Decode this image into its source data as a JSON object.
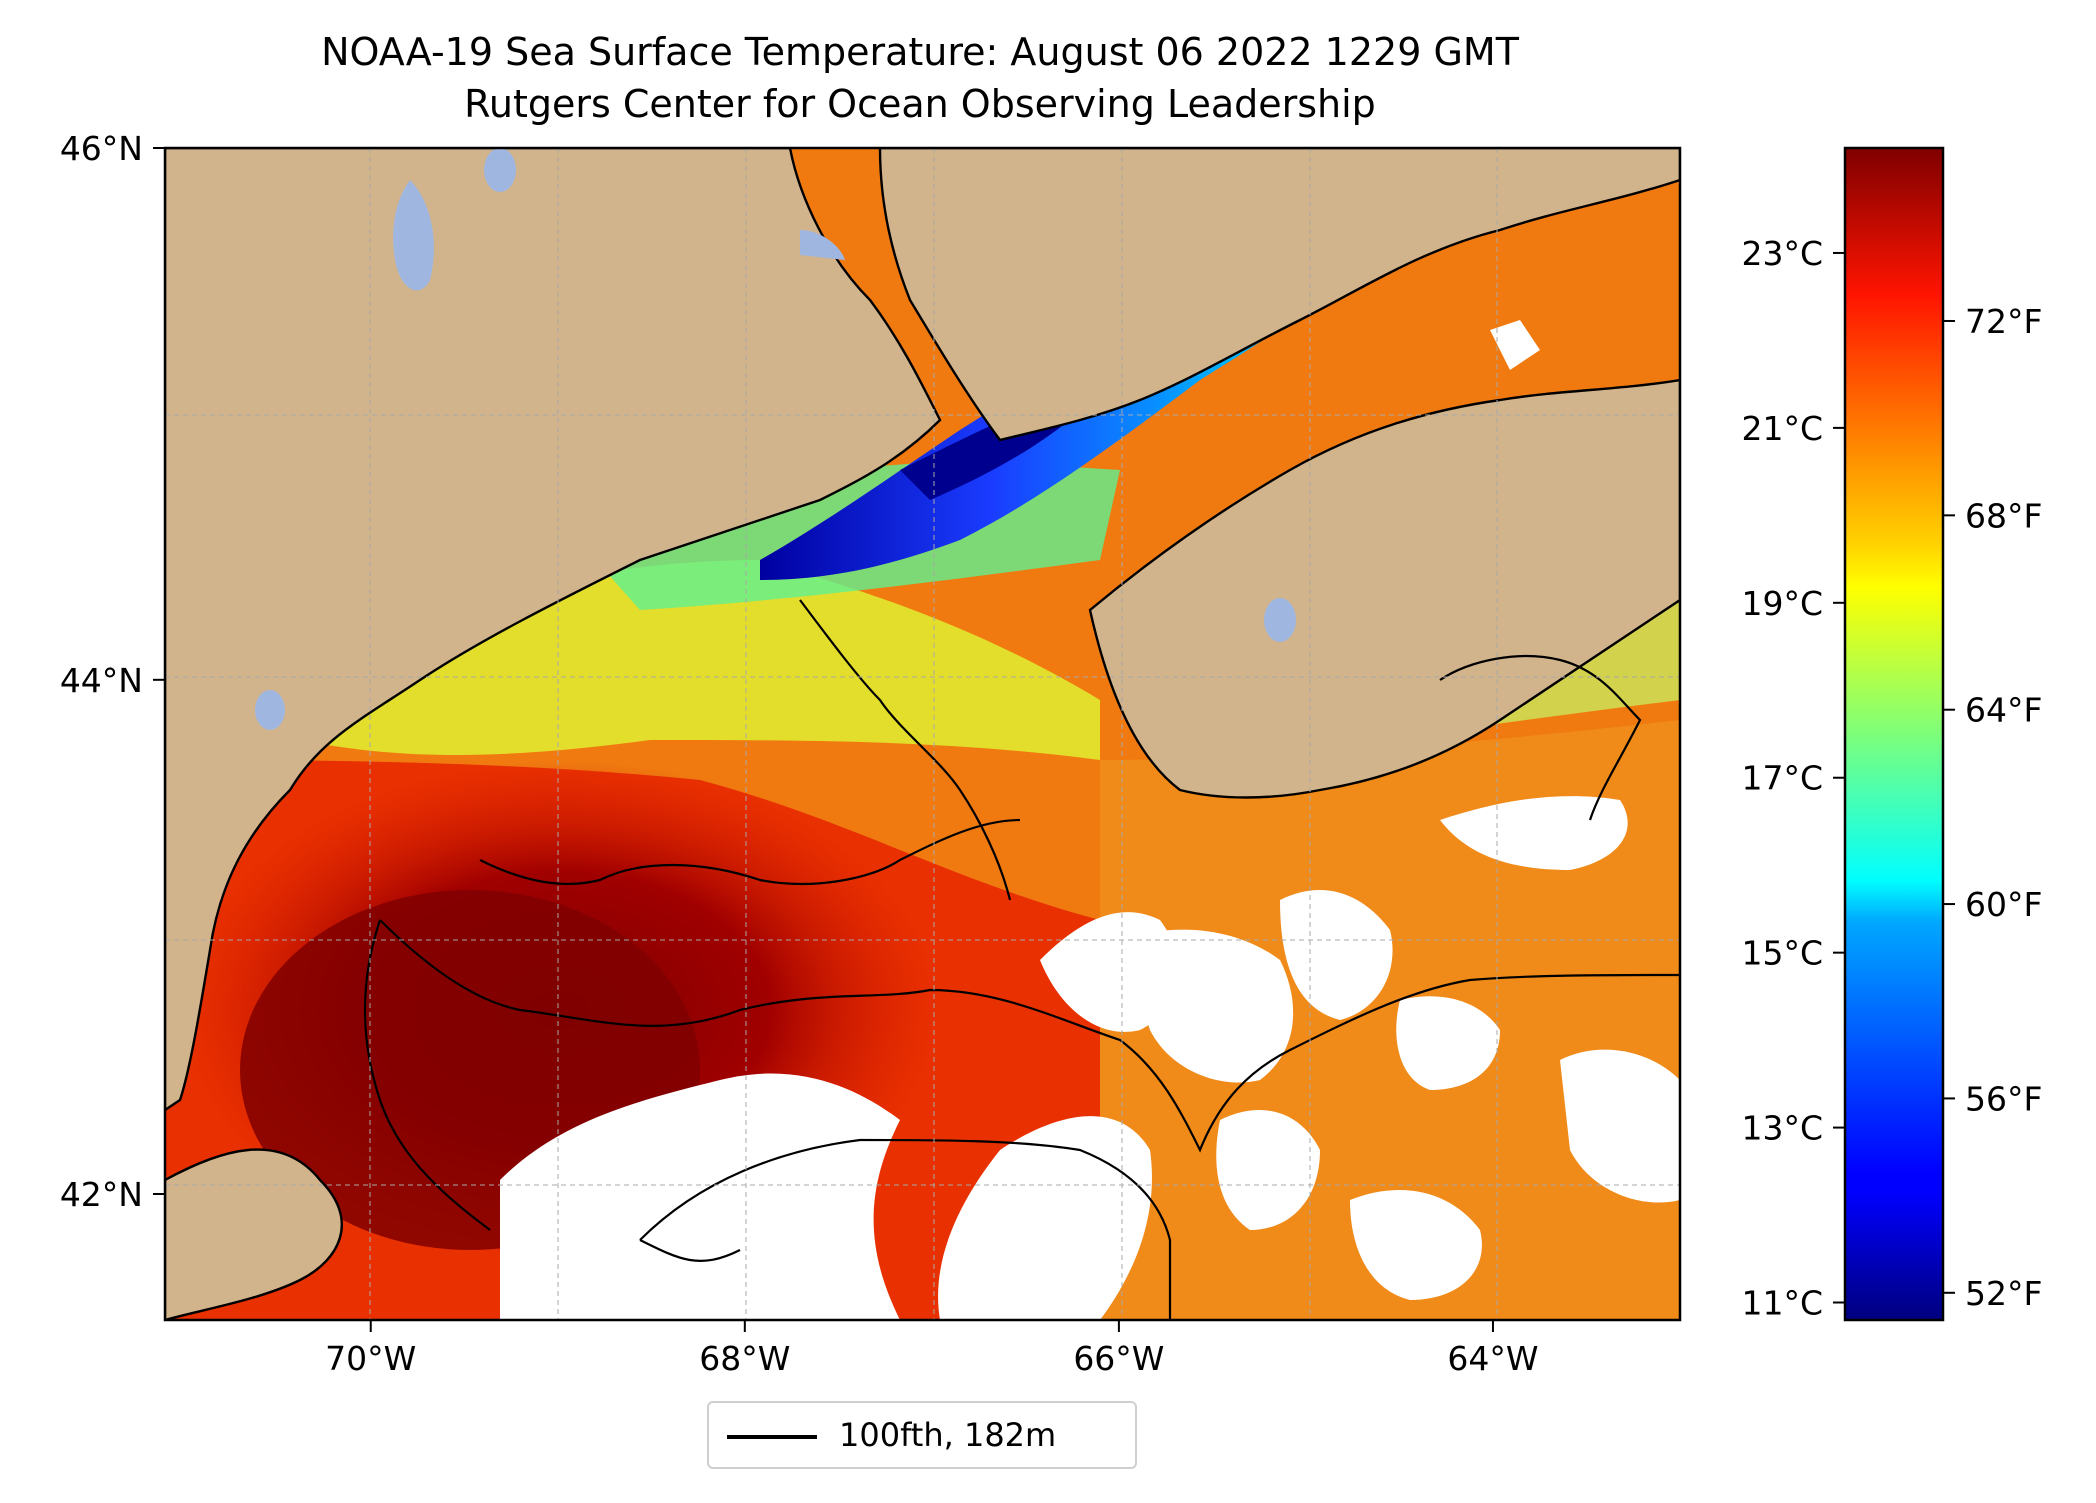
{
  "title": {
    "line1": "NOAA-19 Sea Surface Temperature: August 06 2022 1229 GMT",
    "line2": "Rutgers Center for Ocean Observing Leadership"
  },
  "map": {
    "lon_range": [
      -71.1,
      -63.0
    ],
    "lat_range": [
      41.5,
      46.0
    ],
    "lon_ticks": [
      {
        "value": -70,
        "label": "70°W"
      },
      {
        "value": -68,
        "label": "68°W"
      },
      {
        "value": -66,
        "label": "66°W"
      },
      {
        "value": -64,
        "label": "64°W"
      }
    ],
    "lat_ticks": [
      {
        "value": 46,
        "label": "46°N"
      },
      {
        "value": 44,
        "label": "44°N"
      },
      {
        "value": 42,
        "label": "42°N"
      }
    ],
    "colors": {
      "land": "#d2b48c",
      "lake": "#9fb7e0",
      "cloud_nodata": "#ffffff",
      "gridline": "#a8a8a8"
    }
  },
  "colorbar": {
    "colormap": "jet",
    "celsius_range": [
      10.8,
      24.2
    ],
    "celsius_ticks": [
      {
        "value": 23,
        "label": "23°C"
      },
      {
        "value": 21,
        "label": "21°C"
      },
      {
        "value": 19,
        "label": "19°C"
      },
      {
        "value": 17,
        "label": "17°C"
      },
      {
        "value": 15,
        "label": "15°C"
      },
      {
        "value": 13,
        "label": "13°C"
      },
      {
        "value": 11,
        "label": "11°C"
      }
    ],
    "fahrenheit_ticks": [
      {
        "value": 72,
        "label": "72°F"
      },
      {
        "value": 68,
        "label": "68°F"
      },
      {
        "value": 64,
        "label": "64°F"
      },
      {
        "value": 60,
        "label": "60°F"
      },
      {
        "value": 56,
        "label": "56°F"
      },
      {
        "value": 52,
        "label": "52°F"
      }
    ]
  },
  "legend": {
    "label": "100fth, 182m"
  }
}
